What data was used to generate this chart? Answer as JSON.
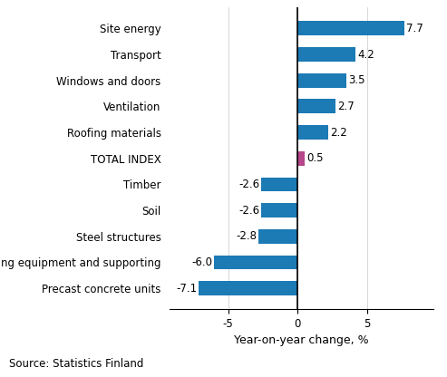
{
  "categories": [
    "Precast concrete units",
    "Moulding equipment and supporting",
    "Steel structures",
    "Soil",
    "Timber",
    "TOTAL INDEX",
    "Roofing materials",
    "Ventilation",
    "Windows and doors",
    "Transport",
    "Site energy"
  ],
  "values": [
    -7.1,
    -6.0,
    -2.8,
    -2.6,
    -2.6,
    0.5,
    2.2,
    2.7,
    3.5,
    4.2,
    7.7
  ],
  "bar_colors": [
    "#1c7ab5",
    "#1c7ab5",
    "#1c7ab5",
    "#1c7ab5",
    "#1c7ab5",
    "#b5478a",
    "#1c7ab5",
    "#1c7ab5",
    "#1c7ab5",
    "#1c7ab5",
    "#1c7ab5"
  ],
  "xlabel": "Year-on-year change, %",
  "xlim": [
    -9.2,
    9.8
  ],
  "xticks": [
    -5,
    0,
    5
  ],
  "source_text": "Source: Statistics Finland",
  "bar_height": 0.55,
  "value_label_fontsize": 8.5,
  "axis_label_fontsize": 9,
  "tick_label_fontsize": 8.5,
  "source_fontsize": 8.5
}
